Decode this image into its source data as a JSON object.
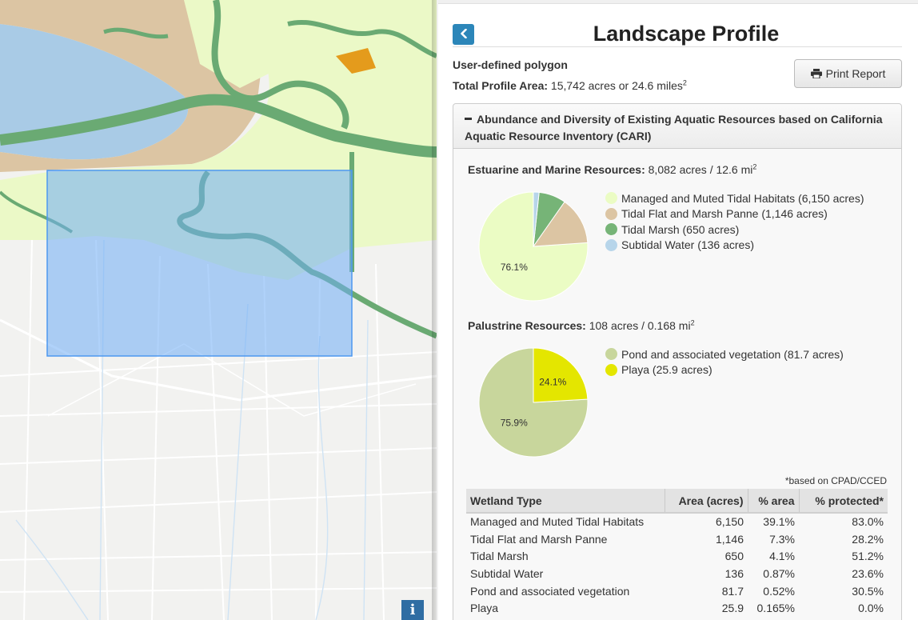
{
  "map": {
    "info_label": "i",
    "colors": {
      "land": "#f2f2f0",
      "bay_water": "#a9cbe6",
      "tidal_flat": "#dcc5a3",
      "managed_tidal": "#ebf9c7",
      "tidal_marsh": "#6aaa73",
      "selection": "#6fadf5"
    }
  },
  "panel": {
    "back_icon": "chevron-left-icon",
    "title": "Landscape Profile",
    "polygon_label": "User-defined polygon",
    "total_area_label": "Total Profile Area:",
    "total_area_value": "15,742 acres or 24.6 miles",
    "total_area_sup": "2",
    "print_label": "Print Report",
    "print_icon": "printer-icon",
    "section_header": "Abundance and Diversity of Existing Aquatic Resources based on California Aquatic Resource Inventory (CARI)",
    "estuarine": {
      "label": "Estuarine and Marine Resources:",
      "value": "8,082 acres / 12.6 mi",
      "sup": "2"
    },
    "palustrine": {
      "label": "Palustrine Resources:",
      "value": "108 acres / 0.168 mi",
      "sup": "2"
    },
    "footnote": "*based on CPAD/CCED",
    "table": {
      "headers": [
        "Wetland Type",
        "Area (acres)",
        "% area",
        "% protected*"
      ],
      "rows": [
        [
          "Managed and Muted Tidal Habitats",
          "6,150",
          "39.1%",
          "83.0%"
        ],
        [
          "Tidal Flat and Marsh Panne",
          "1,146",
          "7.3%",
          "28.2%"
        ],
        [
          "Tidal Marsh",
          "650",
          "4.1%",
          "51.2%"
        ],
        [
          "Subtidal Water",
          "136",
          "0.87%",
          "23.6%"
        ],
        [
          "Pond and associated vegetation",
          "81.7",
          "0.52%",
          "30.5%"
        ],
        [
          "Playa",
          "25.9",
          "0.165%",
          "0.0%"
        ]
      ]
    }
  },
  "chart_data": [
    {
      "type": "pie",
      "slices": [
        {
          "legend": "Managed and Muted Tidal Habitats (6,150 acres)",
          "value": 6150,
          "color": "#ebfcc4"
        },
        {
          "legend": "Tidal Flat and Marsh Panne (1,146 acres)",
          "value": 1146,
          "color": "#dcc5a3"
        },
        {
          "legend": "Tidal Marsh (650 acres)",
          "value": 650,
          "color": "#76b477"
        },
        {
          "legend": "Subtidal Water (136 acres)",
          "value": 136,
          "color": "#b7d5ea"
        }
      ],
      "data_labels": [
        "76.1%"
      ],
      "legend_position": "right"
    },
    {
      "type": "pie",
      "slices": [
        {
          "legend": "Pond and associated vegetation (81.7 acres)",
          "value": 81.7,
          "color": "#c8d69c"
        },
        {
          "legend": "Playa (25.9 acres)",
          "value": 25.9,
          "color": "#e4e600"
        }
      ],
      "data_labels": [
        "75.9%",
        "24.1%"
      ],
      "legend_position": "right"
    }
  ]
}
